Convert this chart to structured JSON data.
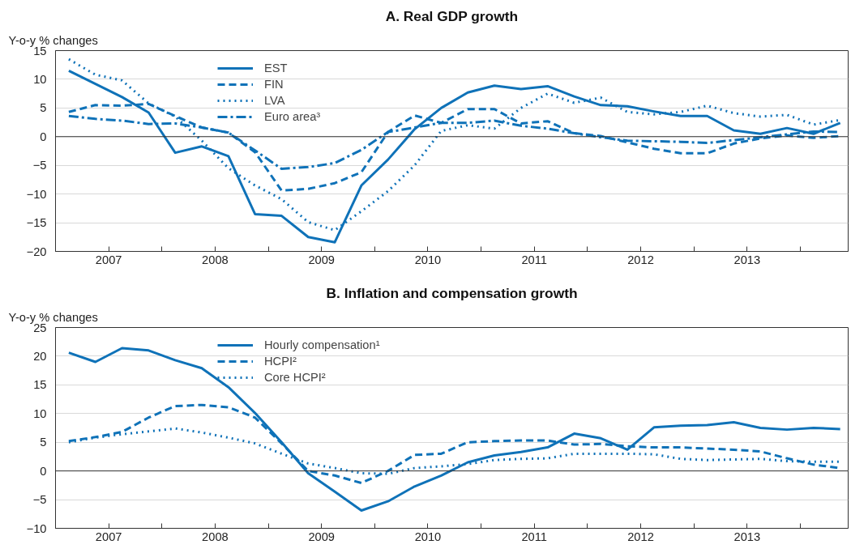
{
  "chart_data": [
    {
      "type": "line",
      "title": "A. Real GDP growth",
      "ylabel": "Y-o-y % changes",
      "x": [
        2007.125,
        2007.375,
        2007.625,
        2007.875,
        2008.125,
        2008.375,
        2008.625,
        2008.875,
        2009.125,
        2009.375,
        2009.625,
        2009.875,
        2010.125,
        2010.375,
        2010.625,
        2010.875,
        2011.125,
        2011.375,
        2011.625,
        2011.875,
        2012.125,
        2012.375,
        2012.625,
        2012.875,
        2013.125,
        2013.375,
        2013.625,
        2013.875,
        2014.125,
        2014.375
      ],
      "series": [
        {
          "name": "EST",
          "color": "#0f72b8",
          "line_style": "solid",
          "values": [
            11.5,
            9.2,
            6.9,
            4.2,
            -2.8,
            -1.7,
            -3.4,
            -13.5,
            -13.8,
            -17.5,
            -18.4,
            -8.5,
            -4.0,
            1.3,
            5.0,
            7.7,
            8.9,
            8.3,
            8.8,
            7.0,
            5.5,
            5.3,
            4.4,
            3.6,
            3.6,
            1.1,
            0.5,
            1.5,
            0.5,
            2.4
          ]
        },
        {
          "name": "FIN",
          "color": "#0f72b8",
          "line_style": "dashed",
          "values": [
            4.3,
            5.5,
            5.4,
            5.7,
            3.6,
            1.6,
            0.7,
            -2.7,
            -9.4,
            -9.1,
            -8.1,
            -6.2,
            0.8,
            3.7,
            2.4,
            4.8,
            4.8,
            2.3,
            2.7,
            0.6,
            0.1,
            -1.0,
            -2.1,
            -2.9,
            -2.9,
            -1.2,
            -0.3,
            0.2,
            -0.2,
            0.1
          ]
        },
        {
          "name": "LVA",
          "color": "#0f72b8",
          "line_style": "dotted",
          "values": [
            13.5,
            10.8,
            9.8,
            5.8,
            3.5,
            -0.7,
            -5.5,
            -8.5,
            -10.9,
            -14.9,
            -16.3,
            -13.0,
            -9.5,
            -5.0,
            1.0,
            2.0,
            1.4,
            5.0,
            7.5,
            5.9,
            6.8,
            4.3,
            3.9,
            4.3,
            5.4,
            4.1,
            3.5,
            3.8,
            2.1,
            2.9
          ]
        },
        {
          "name": "Euro area³",
          "color": "#0f72b8",
          "line_style": "dashdot",
          "values": [
            3.6,
            3.1,
            2.8,
            2.2,
            2.3,
            1.6,
            0.7,
            -2.4,
            -5.6,
            -5.3,
            -4.6,
            -2.3,
            0.8,
            1.6,
            2.4,
            2.4,
            2.8,
            1.9,
            1.4,
            0.6,
            -0.1,
            -0.7,
            -0.8,
            -0.9,
            -1.1,
            -0.6,
            -0.1,
            0.4,
            0.9,
            0.8
          ]
        }
      ],
      "xlim": [
        2007,
        2014.45
      ],
      "ylim": [
        -20,
        15
      ],
      "yticks": [
        -20,
        -15,
        -10,
        -5,
        0,
        5,
        10,
        15
      ],
      "xticks": [
        {
          "value": 2007,
          "label": null
        },
        {
          "value": 2007.5,
          "label": "2007"
        },
        {
          "value": 2008,
          "label": null
        },
        {
          "value": 2008.5,
          "label": "2008"
        },
        {
          "value": 2009,
          "label": null
        },
        {
          "value": 2009.5,
          "label": "2009"
        },
        {
          "value": 2010,
          "label": null
        },
        {
          "value": 2010.5,
          "label": "2010"
        },
        {
          "value": 2011,
          "label": null
        },
        {
          "value": 2011.5,
          "label": "2011"
        },
        {
          "value": 2012,
          "label": null
        },
        {
          "value": 2012.5,
          "label": "2012"
        },
        {
          "value": 2013,
          "label": null
        },
        {
          "value": 2013.5,
          "label": "2013"
        },
        {
          "value": 2014,
          "label": null
        }
      ],
      "ref_lines": [
        {
          "axis": "y",
          "value": 0,
          "color": "#333333"
        }
      ],
      "grid": "y",
      "legend": "top left",
      "marker": "none"
    },
    {
      "type": "line",
      "title": "B. Inflation and compensation growth",
      "ylabel": "Y-o-y % changes",
      "x": [
        2007.125,
        2007.375,
        2007.625,
        2007.875,
        2008.125,
        2008.375,
        2008.625,
        2008.875,
        2009.125,
        2009.375,
        2009.625,
        2009.875,
        2010.125,
        2010.375,
        2010.625,
        2010.875,
        2011.125,
        2011.375,
        2011.625,
        2011.875,
        2012.125,
        2012.375,
        2012.625,
        2012.875,
        2013.125,
        2013.375,
        2013.625,
        2013.875,
        2014.125,
        2014.375
      ],
      "series": [
        {
          "name": "Hourly compensation¹",
          "color": "#0f72b8",
          "line_style": "solid",
          "values": [
            20.6,
            19.0,
            21.4,
            21.0,
            19.3,
            17.9,
            14.6,
            10.1,
            5.0,
            -0.4,
            -3.6,
            -6.9,
            -5.3,
            -2.7,
            -0.8,
            1.5,
            2.7,
            3.3,
            4.1,
            6.5,
            5.7,
            3.7,
            7.6,
            7.9,
            8.0,
            8.5,
            7.5,
            7.2,
            7.5,
            7.3
          ]
        },
        {
          "name": "HCPI²",
          "color": "#0f72b8",
          "line_style": "dashed",
          "values": [
            5.2,
            5.9,
            6.8,
            9.3,
            11.3,
            11.5,
            11.1,
            9.3,
            4.8,
            0.0,
            -0.8,
            -2.1,
            0.0,
            2.8,
            3.0,
            5.0,
            5.2,
            5.3,
            5.3,
            4.6,
            4.7,
            4.3,
            4.1,
            4.1,
            3.9,
            3.7,
            3.4,
            2.2,
            1.1,
            0.5
          ]
        },
        {
          "name": "Core HCPI²",
          "color": "#0f72b8",
          "line_style": "dotted",
          "values": [
            5.0,
            5.8,
            6.4,
            6.9,
            7.4,
            6.7,
            5.8,
            4.8,
            3.0,
            1.3,
            0.5,
            -0.4,
            -0.5,
            0.5,
            0.8,
            1.2,
            1.9,
            2.1,
            2.2,
            3.0,
            3.0,
            3.0,
            2.9,
            2.1,
            1.9,
            2.0,
            2.1,
            1.7,
            1.6,
            1.6
          ]
        }
      ],
      "xlim": [
        2007,
        2014.45
      ],
      "ylim": [
        -10,
        25
      ],
      "yticks": [
        -10,
        -5,
        0,
        5,
        10,
        15,
        20,
        25
      ],
      "xticks": [
        {
          "value": 2007,
          "label": null
        },
        {
          "value": 2007.5,
          "label": "2007"
        },
        {
          "value": 2008,
          "label": null
        },
        {
          "value": 2008.5,
          "label": "2008"
        },
        {
          "value": 2009,
          "label": null
        },
        {
          "value": 2009.5,
          "label": "2009"
        },
        {
          "value": 2010,
          "label": null
        },
        {
          "value": 2010.5,
          "label": "2010"
        },
        {
          "value": 2011,
          "label": null
        },
        {
          "value": 2011.5,
          "label": "2011"
        },
        {
          "value": 2012,
          "label": null
        },
        {
          "value": 2012.5,
          "label": "2012"
        },
        {
          "value": 2013,
          "label": null
        },
        {
          "value": 2013.5,
          "label": "2013"
        },
        {
          "value": 2014,
          "label": null
        }
      ],
      "ref_lines": [
        {
          "axis": "y",
          "value": 0,
          "color": "#333333"
        }
      ],
      "grid": "y",
      "legend": "top left",
      "marker": "none"
    }
  ]
}
